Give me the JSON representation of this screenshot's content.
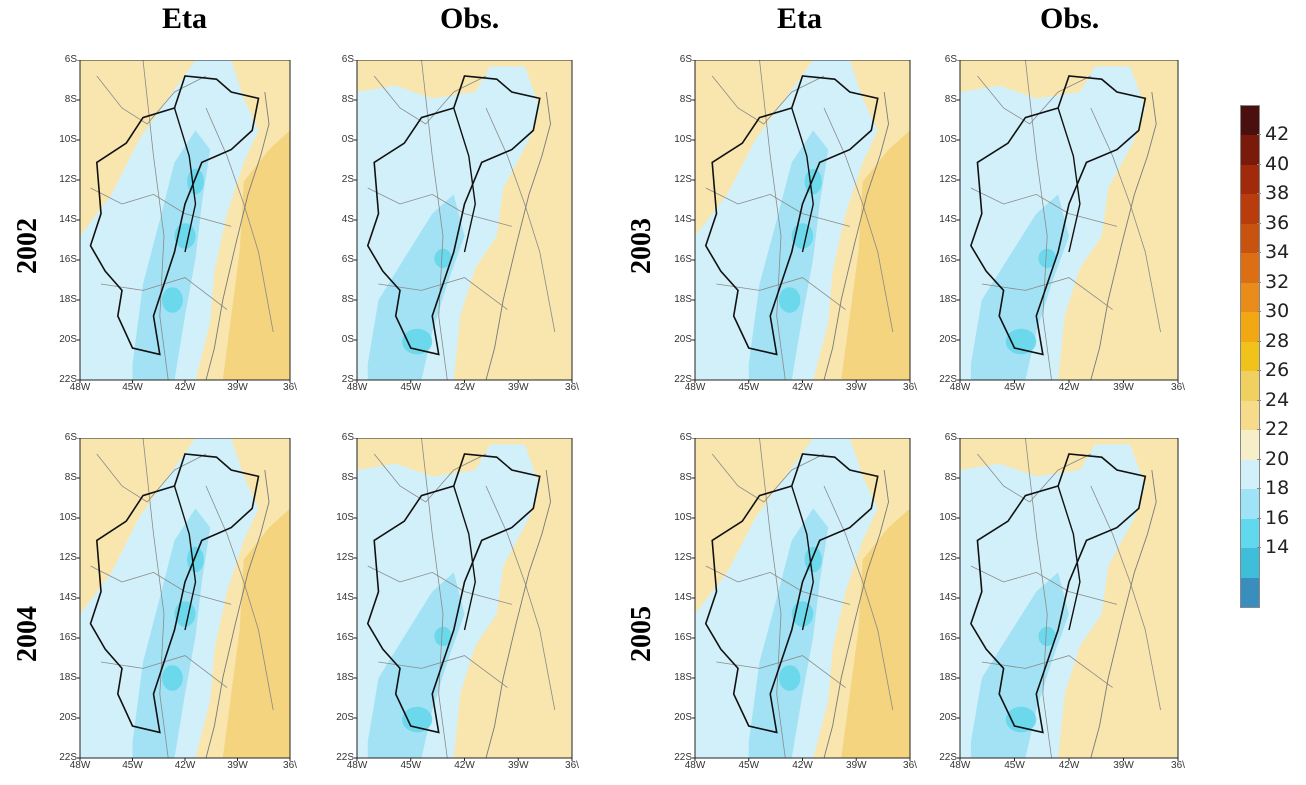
{
  "column_titles": [
    "Eta",
    "Obs.",
    "Eta",
    "Obs."
  ],
  "year_labels": [
    "2002",
    "2003",
    "2004",
    "2005"
  ],
  "panels": [
    {
      "id": "eta-2002",
      "lat_ticks": [
        "6S",
        "8S",
        "10S",
        "12S",
        "14S",
        "16S",
        "18S",
        "20S",
        "22S"
      ],
      "lon_ticks": [
        "48W",
        "45W",
        "42W",
        "39W",
        "36\\"
      ]
    },
    {
      "id": "obs-2002",
      "lat_ticks": [
        "6S",
        "8S",
        "0S",
        "2S",
        "4S",
        "6S",
        "8S",
        "0S",
        "2S"
      ],
      "lon_ticks": [
        "48W",
        "45W",
        "42W",
        "39W",
        "36\\"
      ]
    },
    {
      "id": "eta-2003",
      "lat_ticks": [
        "6S",
        "8S",
        "10S",
        "12S",
        "14S",
        "16S",
        "18S",
        "20S",
        "22S"
      ],
      "lon_ticks": [
        "48W",
        "45W",
        "42W",
        "39W",
        "36\\"
      ]
    },
    {
      "id": "obs-2003",
      "lat_ticks": [
        "6S",
        "8S",
        "10S",
        "12S",
        "14S",
        "16S",
        "18S",
        "20S",
        "22S"
      ],
      "lon_ticks": [
        "48W",
        "45W",
        "42W",
        "39W",
        "36\\"
      ]
    },
    {
      "id": "eta-2004",
      "lat_ticks": [
        "6S",
        "8S",
        "10S",
        "12S",
        "14S",
        "16S",
        "18S",
        "20S",
        "22S"
      ],
      "lon_ticks": [
        "48W",
        "45W",
        "42W",
        "39W",
        "36\\"
      ]
    },
    {
      "id": "obs-2004",
      "lat_ticks": [
        "6S",
        "8S",
        "10S",
        "12S",
        "14S",
        "16S",
        "18S",
        "20S",
        "22S"
      ],
      "lon_ticks": [
        "48W",
        "45W",
        "42W",
        "39W",
        "36\\"
      ]
    },
    {
      "id": "eta-2005",
      "lat_ticks": [
        "6S",
        "8S",
        "10S",
        "12S",
        "14S",
        "16S",
        "18S",
        "20S",
        "22S"
      ],
      "lon_ticks": [
        "48W",
        "45W",
        "42W",
        "39W",
        "36\\"
      ]
    },
    {
      "id": "obs-2005",
      "lat_ticks": [
        "6S",
        "8S",
        "10S",
        "12S",
        "14S",
        "16S",
        "18S",
        "20S",
        "22S"
      ],
      "lon_ticks": [
        "48W",
        "45W",
        "42W",
        "39W",
        "36\\"
      ]
    }
  ],
  "colorbar": {
    "labels": [
      "42",
      "40",
      "38",
      "36",
      "34",
      "32",
      "30",
      "28",
      "26",
      "24",
      "22",
      "20",
      "18",
      "16",
      "14"
    ],
    "colors": [
      "#4a1010",
      "#7a1a0a",
      "#a02a0a",
      "#b83c0c",
      "#c8520f",
      "#dc6e14",
      "#ea8c1a",
      "#f2a812",
      "#f0c21a",
      "#f0d060",
      "#f6dc8a",
      "#f6eec8",
      "#d2f0fa",
      "#9ee4f6",
      "#62d8ee",
      "#3ebed8",
      "#3a8ebe"
    ]
  },
  "colors": {
    "warm": "#f8e6ae",
    "warm_dark": "#f4d47e",
    "cool_light": "#d2f0fa",
    "cool": "#a2e2f4",
    "cool_dark": "#62d6ea"
  }
}
